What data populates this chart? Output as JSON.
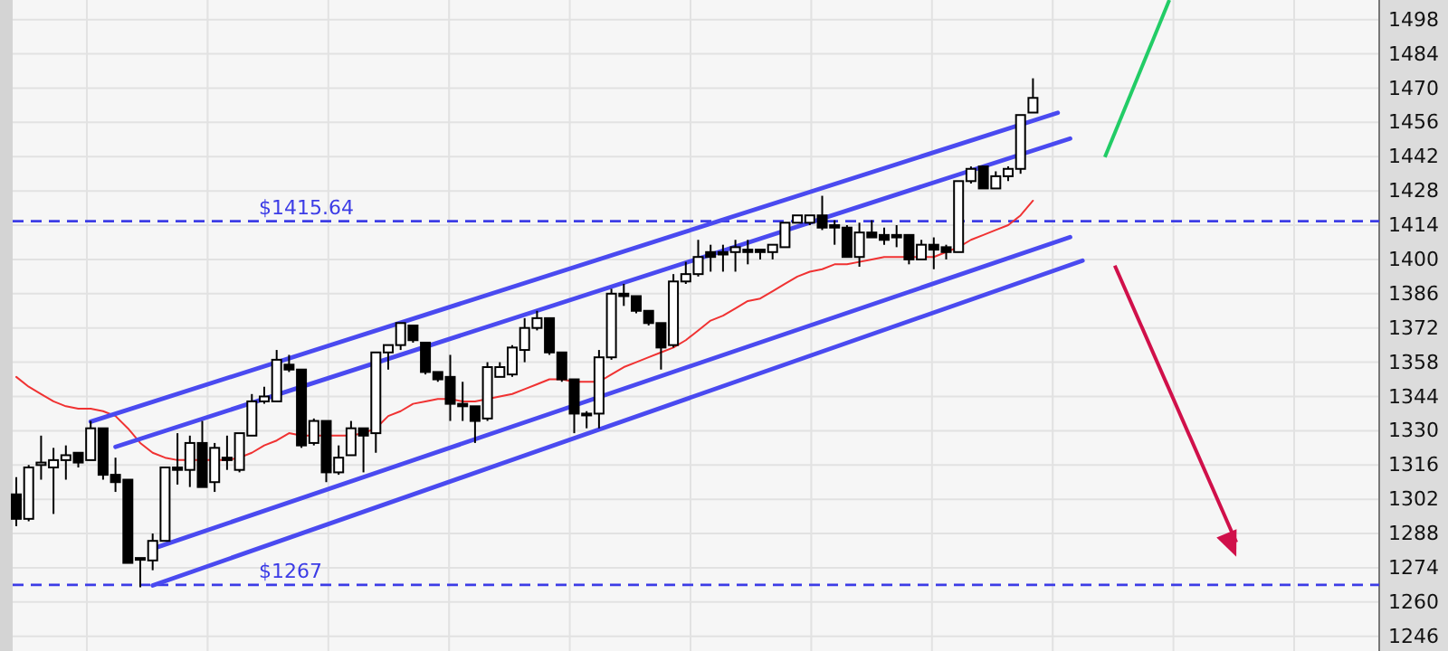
{
  "chart_data": {
    "type": "candlestick",
    "categories": [
      null,
      null,
      null,
      null,
      null,
      null,
      null,
      null,
      null,
      null,
      null,
      null,
      null,
      null,
      null,
      null,
      null,
      null,
      null,
      null,
      null,
      null,
      null,
      null,
      null,
      null,
      null,
      null,
      null,
      null,
      null,
      null,
      null,
      null,
      null,
      null,
      null,
      null,
      null,
      null,
      null,
      null,
      null,
      null,
      null,
      null,
      null,
      null,
      null,
      null,
      null,
      null,
      null,
      null,
      null,
      null,
      null,
      null,
      null,
      null,
      null,
      null,
      null,
      null,
      null,
      null,
      null,
      null,
      null,
      null,
      null,
      null,
      null,
      null,
      null,
      null,
      null,
      null,
      null,
      null,
      null,
      null,
      null,
      null,
      null,
      null,
      null
    ],
    "ohlc": [
      [
        1304,
        1311,
        1291,
        1294
      ],
      [
        1294,
        1316,
        1293,
        1315
      ],
      [
        1316,
        1328,
        1310,
        1317
      ],
      [
        1315,
        1323,
        1296,
        1318
      ],
      [
        1318,
        1324,
        1310,
        1320
      ],
      [
        1321,
        1321,
        1315,
        1317
      ],
      [
        1318,
        1334,
        1318,
        1331
      ],
      [
        1331,
        1331,
        1310,
        1312
      ],
      [
        1312,
        1319,
        1305,
        1309
      ],
      [
        1310,
        1310,
        1276,
        1276
      ],
      [
        1278,
        1278,
        1266,
        1278
      ],
      [
        1277,
        1288,
        1273,
        1285
      ],
      [
        1285,
        1315,
        1285,
        1315
      ],
      [
        1315,
        1329,
        1308,
        1314
      ],
      [
        1314,
        1328,
        1307,
        1325
      ],
      [
        1325,
        1334,
        1307,
        1307
      ],
      [
        1309,
        1325,
        1305,
        1323
      ],
      [
        1319,
        1328,
        1314,
        1318
      ],
      [
        1314,
        1329,
        1313,
        1329
      ],
      [
        1328,
        1345,
        1328,
        1342
      ],
      [
        1342,
        1348,
        1341,
        1344
      ],
      [
        1342,
        1363,
        1342,
        1359
      ],
      [
        1357,
        1361,
        1354,
        1355
      ],
      [
        1355,
        1355,
        1323,
        1324
      ],
      [
        1325,
        1335,
        1324,
        1334
      ],
      [
        1334,
        1334,
        1309,
        1313
      ],
      [
        1313,
        1324,
        1312,
        1319
      ],
      [
        1320,
        1334,
        1320,
        1331
      ],
      [
        1331,
        1331,
        1313,
        1328
      ],
      [
        1329,
        1362,
        1321,
        1362
      ],
      [
        1362,
        1365,
        1355,
        1365
      ],
      [
        1365,
        1374,
        1363,
        1374
      ],
      [
        1373,
        1373,
        1366,
        1367
      ],
      [
        1366,
        1366,
        1353,
        1354
      ],
      [
        1354,
        1354,
        1350,
        1351
      ],
      [
        1352,
        1361,
        1334,
        1341
      ],
      [
        1341,
        1350,
        1334,
        1340
      ],
      [
        1340,
        1340,
        1325,
        1334
      ],
      [
        1335,
        1358,
        1334,
        1356
      ],
      [
        1352,
        1358,
        1352,
        1356
      ],
      [
        1353,
        1365,
        1352,
        1364
      ],
      [
        1363,
        1376,
        1358,
        1372
      ],
      [
        1372,
        1379,
        1371,
        1376
      ],
      [
        1376,
        1376,
        1361,
        1362
      ],
      [
        1362,
        1362,
        1350,
        1351
      ],
      [
        1351,
        1351,
        1329,
        1337
      ],
      [
        1337,
        1338,
        1331,
        1337
      ],
      [
        1337,
        1363,
        1331,
        1360
      ],
      [
        1360,
        1388,
        1359,
        1386
      ],
      [
        1386,
        1390,
        1381,
        1385
      ],
      [
        1385,
        1385,
        1378,
        1379
      ],
      [
        1379,
        1379,
        1373,
        1374
      ],
      [
        1374,
        1374,
        1355,
        1364
      ],
      [
        1365,
        1394,
        1364,
        1391
      ],
      [
        1391,
        1399,
        1390,
        1394
      ],
      [
        1394,
        1408,
        1393,
        1401
      ],
      [
        1403,
        1406,
        1395,
        1401
      ],
      [
        1403,
        1406,
        1395,
        1402
      ],
      [
        1403,
        1408,
        1395,
        1405
      ],
      [
        1404,
        1408,
        1398,
        1403
      ],
      [
        1404,
        1404,
        1400,
        1403
      ],
      [
        1403,
        1406,
        1400,
        1406
      ],
      [
        1405,
        1415,
        1405,
        1415
      ],
      [
        1415,
        1418,
        1415,
        1418
      ],
      [
        1415,
        1418,
        1414,
        1418
      ],
      [
        1418,
        1426,
        1412,
        1413
      ],
      [
        1414,
        1416,
        1406,
        1413
      ],
      [
        1413,
        1414,
        1401,
        1401
      ],
      [
        1401,
        1415,
        1397,
        1411
      ],
      [
        1411,
        1416,
        1409,
        1409
      ],
      [
        1410,
        1413,
        1406,
        1408
      ],
      [
        1410,
        1414,
        1405,
        1409
      ],
      [
        1410,
        1410,
        1398,
        1400
      ],
      [
        1400,
        1408,
        1400,
        1406
      ],
      [
        1406,
        1409,
        1396,
        1404
      ],
      [
        1405,
        1406,
        1400,
        1403
      ],
      [
        1403,
        1432,
        1403,
        1432
      ],
      [
        1432,
        1438,
        1431,
        1437
      ],
      [
        1438,
        1438,
        1429,
        1429
      ],
      [
        1429,
        1436,
        1429,
        1434
      ],
      [
        1434,
        1438,
        1432,
        1437
      ],
      [
        1437,
        1459,
        1435,
        1459
      ],
      [
        1460,
        1474,
        1460,
        1466
      ],
      null,
      null,
      null,
      null
    ],
    "series": [
      {
        "type": "line",
        "color": "#f03232",
        "values": [
          1352,
          1348,
          1345,
          1342,
          1340,
          1339,
          1339,
          1338,
          1336,
          1331,
          1325,
          1321,
          1319,
          1318,
          1318,
          1318,
          1318,
          1318,
          1319,
          1321,
          1324,
          1326,
          1329,
          1328,
          1328,
          1328,
          1328,
          1328,
          1329,
          1331,
          1336,
          1338,
          1341,
          1342,
          1343,
          1343,
          1342,
          1342,
          1343,
          1344,
          1345,
          1347,
          1349,
          1351,
          1351,
          1350,
          1350,
          1350,
          1353,
          1356,
          1358,
          1360,
          1362,
          1364,
          1367,
          1371,
          1375,
          1377,
          1380,
          1383,
          1384,
          1387,
          1390,
          1393,
          1395,
          1396,
          1398,
          1398,
          1399,
          1400,
          1401,
          1401,
          1401,
          1401,
          1401,
          1403,
          1405,
          1408,
          1410,
          1412,
          1414,
          1418,
          1424,
          null,
          null,
          null,
          null
        ]
      },
      {
        "type": "line",
        "color": "#4a4af0",
        "values": [
          null,
          null,
          null,
          null,
          null,
          null,
          1333.7,
          null,
          null,
          null,
          null,
          null,
          null,
          null,
          null,
          null,
          null,
          null,
          null,
          null,
          null,
          null,
          null,
          null,
          null,
          null,
          null,
          null,
          null,
          null,
          null,
          null,
          null,
          null,
          null,
          null,
          null,
          null,
          null,
          null,
          null,
          null,
          null,
          null,
          null,
          null,
          null,
          null,
          null,
          null,
          null,
          null,
          null,
          null,
          null,
          null,
          null,
          null,
          null,
          null,
          null,
          null,
          null,
          null,
          null,
          null,
          null,
          null,
          null,
          null,
          null,
          null,
          null,
          null,
          null,
          null,
          null,
          null,
          null,
          null,
          null,
          null,
          null,
          null,
          1459.9,
          null,
          null
        ]
      },
      {
        "type": "line",
        "color": "#4a4af0",
        "values": [
          null,
          null,
          null,
          null,
          null,
          null,
          null,
          null,
          1323.4,
          null,
          null,
          null,
          null,
          null,
          null,
          null,
          null,
          null,
          null,
          null,
          null,
          null,
          null,
          null,
          null,
          null,
          null,
          null,
          null,
          null,
          null,
          null,
          null,
          null,
          null,
          null,
          null,
          null,
          null,
          null,
          null,
          null,
          null,
          null,
          null,
          null,
          null,
          null,
          null,
          null,
          null,
          null,
          null,
          null,
          null,
          null,
          null,
          null,
          null,
          null,
          null,
          null,
          null,
          null,
          null,
          null,
          null,
          null,
          null,
          null,
          null,
          null,
          null,
          null,
          null,
          null,
          null,
          null,
          null,
          null,
          null,
          null,
          null,
          null,
          null,
          1449.4,
          null
        ]
      },
      {
        "type": "line",
        "color": "#4a4af0",
        "values": [
          null,
          null,
          null,
          null,
          null,
          null,
          null,
          null,
          null,
          null,
          null,
          1281.8,
          null,
          null,
          null,
          null,
          null,
          null,
          null,
          null,
          null,
          null,
          null,
          null,
          null,
          null,
          null,
          null,
          null,
          null,
          null,
          null,
          null,
          null,
          null,
          null,
          null,
          null,
          null,
          null,
          null,
          null,
          null,
          null,
          null,
          null,
          null,
          null,
          null,
          null,
          null,
          null,
          null,
          null,
          null,
          null,
          null,
          null,
          null,
          null,
          null,
          null,
          null,
          null,
          null,
          null,
          null,
          null,
          null,
          null,
          null,
          null,
          null,
          null,
          null,
          null,
          null,
          null,
          null,
          null,
          null,
          null,
          null,
          null,
          null,
          1409.1,
          null
        ]
      },
      {
        "type": "line",
        "color": "#4a4af0",
        "values": [
          null,
          null,
          null,
          null,
          null,
          null,
          null,
          null,
          null,
          null,
          null,
          1266.8,
          null,
          null,
          null,
          null,
          null,
          null,
          null,
          null,
          null,
          null,
          null,
          null,
          null,
          null,
          null,
          null,
          null,
          null,
          null,
          null,
          null,
          null,
          null,
          null,
          null,
          null,
          null,
          null,
          null,
          null,
          null,
          null,
          null,
          null,
          null,
          null,
          null,
          null,
          null,
          null,
          null,
          null,
          null,
          null,
          null,
          null,
          null,
          null,
          null,
          null,
          null,
          null,
          null,
          null,
          null,
          null,
          null,
          null,
          null,
          null,
          null,
          null,
          null,
          null,
          null,
          null,
          null,
          null,
          null,
          null,
          null,
          null,
          null,
          null,
          1399.5
        ]
      }
    ],
    "ref_lines": [
      {
        "axis": "y",
        "value": 1415.64,
        "label": "$1415.64",
        "color": "#3c3ce6",
        "line_style": "dashed"
      },
      {
        "axis": "y",
        "value": 1267,
        "label": "$1267",
        "color": "#3c3ce6",
        "line_style": "dashed"
      }
    ],
    "ylim": [
      1240,
      1506
    ],
    "yticks": [
      1246,
      1260,
      1274,
      1288,
      1302,
      1316,
      1330,
      1344,
      1358,
      1372,
      1386,
      1400,
      1414,
      1428,
      1442,
      1456,
      1470,
      1484,
      1498
    ],
    "tick_labels": "y",
    "grid": true
  }
}
